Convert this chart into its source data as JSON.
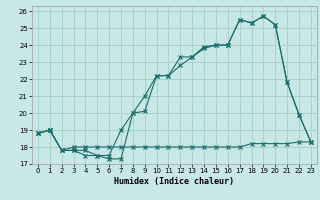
{
  "bg_color": "#c8e8e5",
  "grid_color": "#a8d0cc",
  "line_color": "#1a6b6b",
  "xlim": [
    -0.5,
    23.5
  ],
  "ylim": [
    17,
    26.3
  ],
  "xticks": [
    0,
    1,
    2,
    3,
    4,
    5,
    6,
    7,
    8,
    9,
    10,
    11,
    12,
    13,
    14,
    15,
    16,
    17,
    18,
    19,
    20,
    21,
    22,
    23
  ],
  "yticks": [
    17,
    18,
    19,
    20,
    21,
    22,
    23,
    24,
    25,
    26
  ],
  "xlabel": "Humidex (Indice chaleur)",
  "line1_x": [
    0,
    1,
    2,
    3,
    4,
    5,
    6,
    7,
    8,
    9,
    10,
    11,
    12,
    13,
    14,
    15,
    16,
    17,
    18,
    19,
    20,
    21,
    22,
    23
  ],
  "line1_y": [
    18.8,
    19.0,
    17.8,
    17.8,
    17.8,
    17.5,
    17.5,
    19.0,
    20.0,
    20.1,
    22.2,
    22.2,
    22.8,
    23.3,
    23.8,
    24.0,
    24.0,
    25.5,
    25.3,
    25.7,
    25.2,
    21.8,
    19.9,
    18.3
  ],
  "line2_x": [
    0,
    1,
    2,
    3,
    4,
    5,
    6,
    7,
    8,
    9,
    10,
    11,
    12,
    13,
    14,
    15,
    16,
    17,
    18,
    19,
    20,
    21,
    22,
    23
  ],
  "line2_y": [
    18.8,
    19.0,
    17.8,
    17.8,
    17.5,
    17.5,
    17.3,
    17.3,
    20.0,
    21.0,
    22.2,
    22.2,
    23.3,
    23.3,
    23.9,
    24.0,
    24.0,
    25.5,
    25.3,
    25.7,
    25.2,
    21.8,
    19.9,
    18.3
  ],
  "line3_x": [
    0,
    1,
    2,
    3,
    4,
    5,
    6,
    7,
    8,
    9,
    10,
    11,
    12,
    13,
    14,
    15,
    16,
    17,
    18,
    19,
    20,
    21,
    22,
    23
  ],
  "line3_y": [
    18.8,
    19.0,
    17.8,
    18.0,
    18.0,
    18.0,
    18.0,
    18.0,
    18.0,
    18.0,
    18.0,
    18.0,
    18.0,
    18.0,
    18.0,
    18.0,
    18.0,
    18.0,
    18.2,
    18.2,
    18.2,
    18.2,
    18.3,
    18.3
  ]
}
